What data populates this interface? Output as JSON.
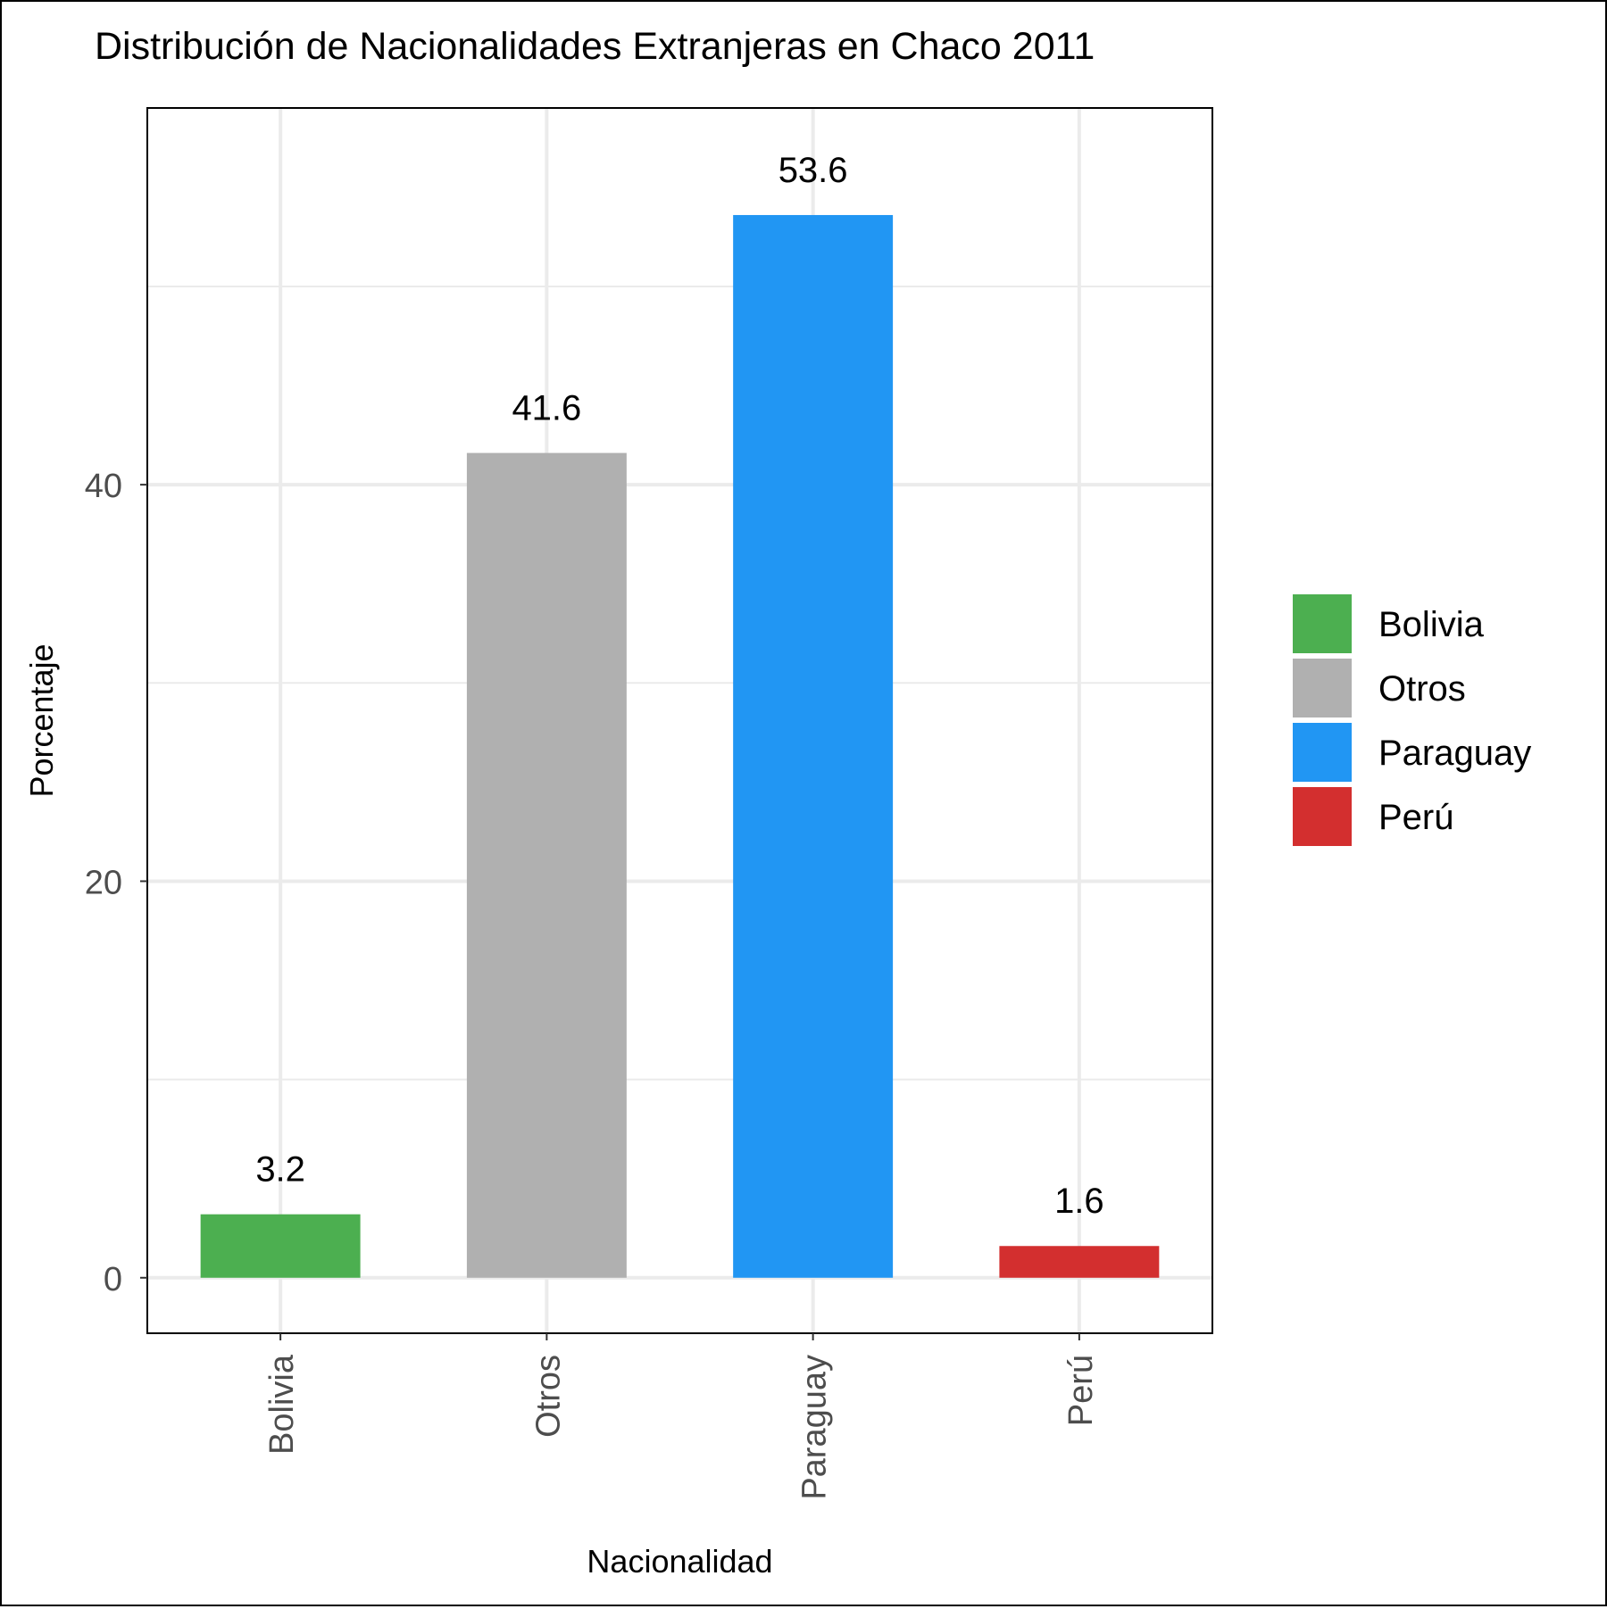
{
  "chart_data": {
    "type": "bar",
    "title": "Distribución de Nacionalidades Extranjeras en Chaco 2011",
    "xlabel": "Nacionalidad",
    "ylabel": "Porcentaje",
    "categories": [
      "Bolivia",
      "Otros",
      "Paraguay",
      "Perú"
    ],
    "values": [
      3.2,
      41.6,
      53.6,
      1.6
    ],
    "value_labels": [
      "3.2",
      "41.6",
      "53.6",
      "1.6"
    ],
    "colors": [
      "#4CAF50",
      "#B0B0B0",
      "#2196F3",
      "#D32F2F"
    ],
    "ylim": [
      -2.8,
      59.0
    ],
    "yticks": [
      0,
      20,
      40
    ],
    "ytick_labels": [
      "0",
      "20",
      "40"
    ],
    "grid": true,
    "legend": {
      "position": "right",
      "entries": [
        "Bolivia",
        "Otros",
        "Paraguay",
        "Perú"
      ]
    }
  }
}
